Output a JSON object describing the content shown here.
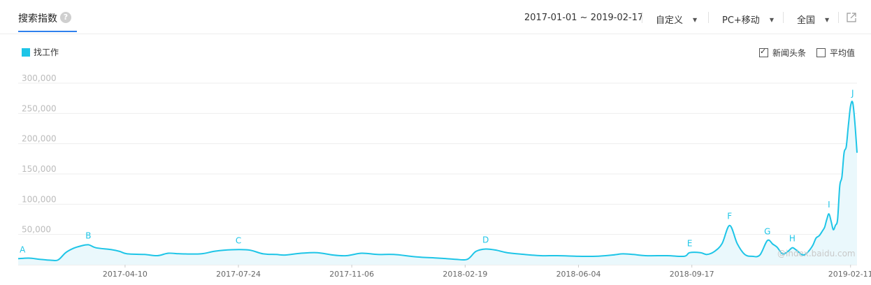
{
  "header": {
    "title": "搜索指数",
    "help_icon": "question-circle-icon",
    "date_range": "2017-01-01 ~ 2019-02-17",
    "dropdowns": [
      {
        "label": "自定义"
      },
      {
        "label": "PC+移动"
      },
      {
        "label": "全国"
      }
    ],
    "export_icon": "external-link-icon"
  },
  "legend": {
    "label": "找工作",
    "color": "#1ec5e7"
  },
  "options": [
    {
      "label": "新闻头条",
      "checked": true
    },
    {
      "label": "平均值",
      "checked": false
    }
  ],
  "watermark": "@index.baidu.com",
  "chart_data": {
    "type": "area",
    "series": [
      {
        "name": "找工作",
        "color": "#1ec5e7",
        "points": [
          [
            "2017-01-01",
            10000
          ],
          [
            "2017-01-11",
            11000
          ],
          [
            "2017-01-21",
            9000
          ],
          [
            "2017-01-31",
            7500
          ],
          [
            "2017-02-07",
            8000
          ],
          [
            "2017-02-14",
            20000
          ],
          [
            "2017-02-21",
            27000
          ],
          [
            "2017-02-28",
            31000
          ],
          [
            "2017-03-07",
            33000
          ],
          [
            "2017-03-14",
            28000
          ],
          [
            "2017-03-28",
            25000
          ],
          [
            "2017-04-05",
            22000
          ],
          [
            "2017-04-12",
            18000
          ],
          [
            "2017-04-28",
            17000
          ],
          [
            "2017-05-10",
            15000
          ],
          [
            "2017-05-20",
            19000
          ],
          [
            "2017-06-01",
            18000
          ],
          [
            "2017-06-19",
            18000
          ],
          [
            "2017-07-01",
            22000
          ],
          [
            "2017-07-10",
            24000
          ],
          [
            "2017-07-24",
            25000
          ],
          [
            "2017-08-04",
            24000
          ],
          [
            "2017-08-16",
            18000
          ],
          [
            "2017-08-28",
            17000
          ],
          [
            "2017-09-05",
            16000
          ],
          [
            "2017-09-20",
            19000
          ],
          [
            "2017-10-05",
            20000
          ],
          [
            "2017-10-20",
            16000
          ],
          [
            "2017-11-01",
            15000
          ],
          [
            "2017-11-15",
            19000
          ],
          [
            "2017-11-30",
            17000
          ],
          [
            "2017-12-15",
            17000
          ],
          [
            "2018-01-05",
            13000
          ],
          [
            "2018-01-25",
            11000
          ],
          [
            "2018-02-10",
            9000
          ],
          [
            "2018-02-21",
            9000
          ],
          [
            "2018-03-01",
            22000
          ],
          [
            "2018-03-10",
            26000
          ],
          [
            "2018-03-20",
            24000
          ],
          [
            "2018-03-30",
            20000
          ],
          [
            "2018-04-15",
            17000
          ],
          [
            "2018-04-30",
            15000
          ],
          [
            "2018-05-15",
            15000
          ],
          [
            "2018-06-04",
            14000
          ],
          [
            "2018-06-20",
            14000
          ],
          [
            "2018-07-05",
            16000
          ],
          [
            "2018-07-15",
            18000
          ],
          [
            "2018-07-25",
            17000
          ],
          [
            "2018-08-05",
            15000
          ],
          [
            "2018-08-25",
            15000
          ],
          [
            "2018-09-10",
            14000
          ],
          [
            "2018-09-15",
            20000
          ],
          [
            "2018-09-25",
            20000
          ],
          [
            "2018-10-01",
            17000
          ],
          [
            "2018-10-08",
            22000
          ],
          [
            "2018-10-15",
            35000
          ],
          [
            "2018-10-22",
            65000
          ],
          [
            "2018-10-29",
            35000
          ],
          [
            "2018-11-05",
            17000
          ],
          [
            "2018-11-12",
            14000
          ],
          [
            "2018-11-19",
            16000
          ],
          [
            "2018-11-26",
            40000
          ],
          [
            "2018-12-01",
            34000
          ],
          [
            "2018-12-05",
            29000
          ],
          [
            "2018-12-10",
            18000
          ],
          [
            "2018-12-15",
            22000
          ],
          [
            "2018-12-19",
            28000
          ],
          [
            "2018-12-23",
            24000
          ],
          [
            "2018-12-29",
            16000
          ],
          [
            "2019-01-03",
            22000
          ],
          [
            "2019-01-07",
            32000
          ],
          [
            "2019-01-10",
            44000
          ],
          [
            "2019-01-13",
            48000
          ],
          [
            "2019-01-16",
            56000
          ],
          [
            "2019-01-18",
            62000
          ],
          [
            "2019-01-20",
            75000
          ],
          [
            "2019-01-22",
            84000
          ],
          [
            "2019-01-24",
            72000
          ],
          [
            "2019-01-26",
            58000
          ],
          [
            "2019-01-28",
            65000
          ],
          [
            "2019-01-30",
            75000
          ],
          [
            "2019-02-01",
            130000
          ],
          [
            "2019-02-03",
            145000
          ],
          [
            "2019-02-05",
            185000
          ],
          [
            "2019-02-07",
            195000
          ],
          [
            "2019-02-09",
            230000
          ],
          [
            "2019-02-11",
            262000
          ],
          [
            "2019-02-13",
            268000
          ],
          [
            "2019-02-15",
            235000
          ],
          [
            "2019-02-17",
            185000
          ]
        ]
      }
    ],
    "x_range": [
      "2017-01-01",
      "2019-02-17"
    ],
    "x_ticks": [
      "2017-04-10",
      "2017-07-24",
      "2017-11-06",
      "2018-02-19",
      "2018-06-04",
      "2018-09-17",
      "2019-02-11"
    ],
    "y_ticks": [
      50000,
      100000,
      150000,
      200000,
      250000,
      300000
    ],
    "y_tick_labels": [
      "50,000",
      "100,000",
      "150,000",
      "200,000",
      "250,000",
      "300,000"
    ],
    "ylim": [
      0,
      300000
    ],
    "grid": true,
    "legend_position": "top-left",
    "annotations": [
      {
        "label": "A",
        "x": "2017-01-05",
        "y": 10000
      },
      {
        "label": "B",
        "x": "2017-03-07",
        "y": 33000
      },
      {
        "label": "C",
        "x": "2017-07-24",
        "y": 25000
      },
      {
        "label": "D",
        "x": "2018-03-10",
        "y": 26000
      },
      {
        "label": "E",
        "x": "2018-09-15",
        "y": 20000
      },
      {
        "label": "F",
        "x": "2018-10-22",
        "y": 65000
      },
      {
        "label": "G",
        "x": "2018-11-26",
        "y": 40000
      },
      {
        "label": "H",
        "x": "2018-12-19",
        "y": 28000
      },
      {
        "label": "I",
        "x": "2019-01-22",
        "y": 84000
      },
      {
        "label": "J",
        "x": "2019-02-13",
        "y": 268000
      }
    ]
  }
}
